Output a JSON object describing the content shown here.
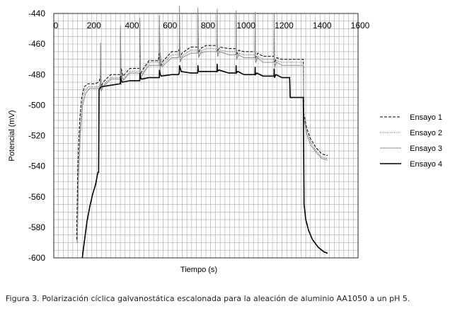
{
  "chart_data": {
    "type": "line",
    "xlabel": "Tiempo (s)",
    "ylabel": "Potencial (mV)",
    "xlim": [
      0,
      1600
    ],
    "ylim": [
      -600,
      -440
    ],
    "x_ticks": [
      0,
      200,
      400,
      600,
      800,
      1000,
      1200,
      1400,
      1600
    ],
    "y_ticks": [
      -440,
      -460,
      -480,
      -500,
      -520,
      -540,
      -560,
      -580,
      -600
    ],
    "x_tick_labels": [
      "0",
      "200",
      "400",
      "600",
      "800",
      "1000",
      "1200",
      "1400",
      "1600"
    ],
    "y_tick_labels": [
      "-440",
      "-460",
      "-480",
      "-500",
      "-520",
      "-540",
      "-560",
      "-580",
      "-600"
    ],
    "grid": true,
    "legend_position": "right",
    "series": [
      {
        "name": "Ensayo 1",
        "color": "#000000",
        "dash": "4,2",
        "width": 1,
        "points": [
          [
            120,
            -588
          ],
          [
            126,
            -540
          ],
          [
            136,
            -510
          ],
          [
            146,
            -496
          ],
          [
            160,
            -488
          ],
          [
            180,
            -486
          ],
          [
            220,
            -486
          ],
          [
            234,
            -485
          ],
          [
            240,
            -484
          ],
          [
            245,
            -481
          ],
          [
            300,
            -480
          ],
          [
            350,
            -480
          ],
          [
            355,
            -476
          ],
          [
            400,
            -476
          ],
          [
            450,
            -476
          ],
          [
            455,
            -470
          ],
          [
            500,
            -471
          ],
          [
            550,
            -471
          ],
          [
            555,
            -464
          ],
          [
            620,
            -465
          ],
          [
            655,
            -465
          ],
          [
            660,
            -463
          ],
          [
            720,
            -462
          ],
          [
            755,
            -462
          ],
          [
            760,
            -460
          ],
          [
            800,
            -461
          ],
          [
            855,
            -461
          ],
          [
            860,
            -462
          ],
          [
            920,
            -463
          ],
          [
            955,
            -463
          ],
          [
            960,
            -464
          ],
          [
            1000,
            -465
          ],
          [
            1055,
            -465
          ],
          [
            1060,
            -467
          ],
          [
            1100,
            -468
          ],
          [
            1155,
            -468
          ],
          [
            1160,
            -470
          ],
          [
            1200,
            -470
          ],
          [
            1300,
            -470
          ],
          [
            1312,
            -470
          ],
          [
            1315,
            -505
          ],
          [
            1330,
            -515
          ],
          [
            1350,
            -522
          ],
          [
            1380,
            -528
          ],
          [
            1410,
            -532
          ],
          [
            1440,
            -533
          ]
        ]
      },
      {
        "name": "Ensayo 2",
        "color": "#555555",
        "dash": "1,1.5",
        "width": 1,
        "points": [
          [
            122,
            -590
          ],
          [
            128,
            -545
          ],
          [
            138,
            -515
          ],
          [
            150,
            -498
          ],
          [
            165,
            -490
          ],
          [
            185,
            -488
          ],
          [
            220,
            -488
          ],
          [
            238,
            -488
          ],
          [
            246,
            -483
          ],
          [
            300,
            -482
          ],
          [
            350,
            -482
          ],
          [
            355,
            -478
          ],
          [
            400,
            -478
          ],
          [
            450,
            -478
          ],
          [
            455,
            -472
          ],
          [
            500,
            -472
          ],
          [
            555,
            -472
          ],
          [
            560,
            -466
          ],
          [
            620,
            -467
          ],
          [
            655,
            -467
          ],
          [
            660,
            -465
          ],
          [
            720,
            -464
          ],
          [
            755,
            -464
          ],
          [
            760,
            -462
          ],
          [
            800,
            -463
          ],
          [
            855,
            -463
          ],
          [
            860,
            -464
          ],
          [
            920,
            -465
          ],
          [
            955,
            -465
          ],
          [
            960,
            -467
          ],
          [
            1000,
            -467
          ],
          [
            1055,
            -467
          ],
          [
            1060,
            -469
          ],
          [
            1100,
            -470
          ],
          [
            1155,
            -470
          ],
          [
            1160,
            -472
          ],
          [
            1200,
            -472
          ],
          [
            1300,
            -472
          ],
          [
            1312,
            -472
          ],
          [
            1315,
            -507
          ],
          [
            1330,
            -517
          ],
          [
            1350,
            -524
          ],
          [
            1380,
            -530
          ],
          [
            1410,
            -534
          ],
          [
            1440,
            -535
          ]
        ]
      },
      {
        "name": "Ensayo 3",
        "color": "#8c8c8c",
        "dash": "",
        "width": 1,
        "points": [
          [
            124,
            -590
          ],
          [
            130,
            -548
          ],
          [
            140,
            -518
          ],
          [
            152,
            -500
          ],
          [
            168,
            -492
          ],
          [
            190,
            -489
          ],
          [
            220,
            -489
          ],
          [
            240,
            -489
          ],
          [
            248,
            -484
          ],
          [
            300,
            -483
          ],
          [
            350,
            -483
          ],
          [
            355,
            -479
          ],
          [
            400,
            -479
          ],
          [
            450,
            -479
          ],
          [
            455,
            -473
          ],
          [
            500,
            -474
          ],
          [
            555,
            -474
          ],
          [
            560,
            -468
          ],
          [
            620,
            -469
          ],
          [
            655,
            -469
          ],
          [
            660,
            -467
          ],
          [
            720,
            -466
          ],
          [
            755,
            -466
          ],
          [
            760,
            -464
          ],
          [
            800,
            -465
          ],
          [
            855,
            -465
          ],
          [
            860,
            -466
          ],
          [
            920,
            -467
          ],
          [
            955,
            -467
          ],
          [
            960,
            -469
          ],
          [
            1000,
            -469
          ],
          [
            1055,
            -469
          ],
          [
            1060,
            -471
          ],
          [
            1100,
            -472
          ],
          [
            1155,
            -472
          ],
          [
            1160,
            -474
          ],
          [
            1200,
            -474
          ],
          [
            1300,
            -474
          ],
          [
            1312,
            -474
          ],
          [
            1315,
            -509
          ],
          [
            1330,
            -519
          ],
          [
            1350,
            -526
          ],
          [
            1380,
            -531
          ],
          [
            1410,
            -535
          ],
          [
            1440,
            -536
          ]
        ]
      },
      {
        "name": "Ensayo 4",
        "color": "#000000",
        "dash": "",
        "width": 1.6,
        "points": [
          [
            150,
            -600
          ],
          [
            160,
            -590
          ],
          [
            175,
            -576
          ],
          [
            190,
            -566
          ],
          [
            205,
            -558
          ],
          [
            220,
            -552
          ],
          [
            232,
            -544
          ],
          [
            236,
            -544
          ],
          [
            238,
            -490
          ],
          [
            242,
            -489
          ],
          [
            250,
            -488
          ],
          [
            300,
            -487
          ],
          [
            350,
            -486
          ],
          [
            355,
            -484
          ],
          [
            400,
            -484
          ],
          [
            450,
            -484
          ],
          [
            455,
            -482
          ],
          [
            500,
            -482
          ],
          [
            555,
            -482
          ],
          [
            560,
            -480
          ],
          [
            620,
            -480
          ],
          [
            655,
            -480
          ],
          [
            660,
            -479
          ],
          [
            720,
            -479
          ],
          [
            755,
            -479
          ],
          [
            760,
            -478
          ],
          [
            800,
            -478
          ],
          [
            855,
            -478
          ],
          [
            860,
            -478
          ],
          [
            920,
            -479
          ],
          [
            955,
            -479
          ],
          [
            960,
            -479
          ],
          [
            1000,
            -480
          ],
          [
            1055,
            -480
          ],
          [
            1060,
            -480
          ],
          [
            1100,
            -481
          ],
          [
            1155,
            -481
          ],
          [
            1160,
            -482
          ],
          [
            1200,
            -482
          ],
          [
            1240,
            -482
          ],
          [
            1243,
            -495
          ],
          [
            1300,
            -495
          ],
          [
            1312,
            -495
          ],
          [
            1316,
            -565
          ],
          [
            1325,
            -575
          ],
          [
            1340,
            -582
          ],
          [
            1360,
            -588
          ],
          [
            1390,
            -593
          ],
          [
            1420,
            -596
          ],
          [
            1440,
            -597
          ]
        ]
      }
    ],
    "spikes": [
      {
        "x": 245,
        "base": -484,
        "peak": -466
      },
      {
        "x": 350,
        "base": -480,
        "peak": -455
      },
      {
        "x": 452,
        "base": -476,
        "peak": -450
      },
      {
        "x": 555,
        "base": -471,
        "peak": -448
      },
      {
        "x": 660,
        "base": -465,
        "peak": -442
      },
      {
        "x": 757,
        "base": -462,
        "peak": -443
      },
      {
        "x": 858,
        "base": -461,
        "peak": -444
      },
      {
        "x": 958,
        "base": -463,
        "peak": -445
      },
      {
        "x": 1058,
        "base": -465,
        "peak": -446
      },
      {
        "x": 1158,
        "base": -468,
        "peak": -447
      }
    ]
  },
  "caption": "Figura 3. Polarización cíclica galvanostática escalonada para la aleación de aluminio AA1050 a un pH 5."
}
